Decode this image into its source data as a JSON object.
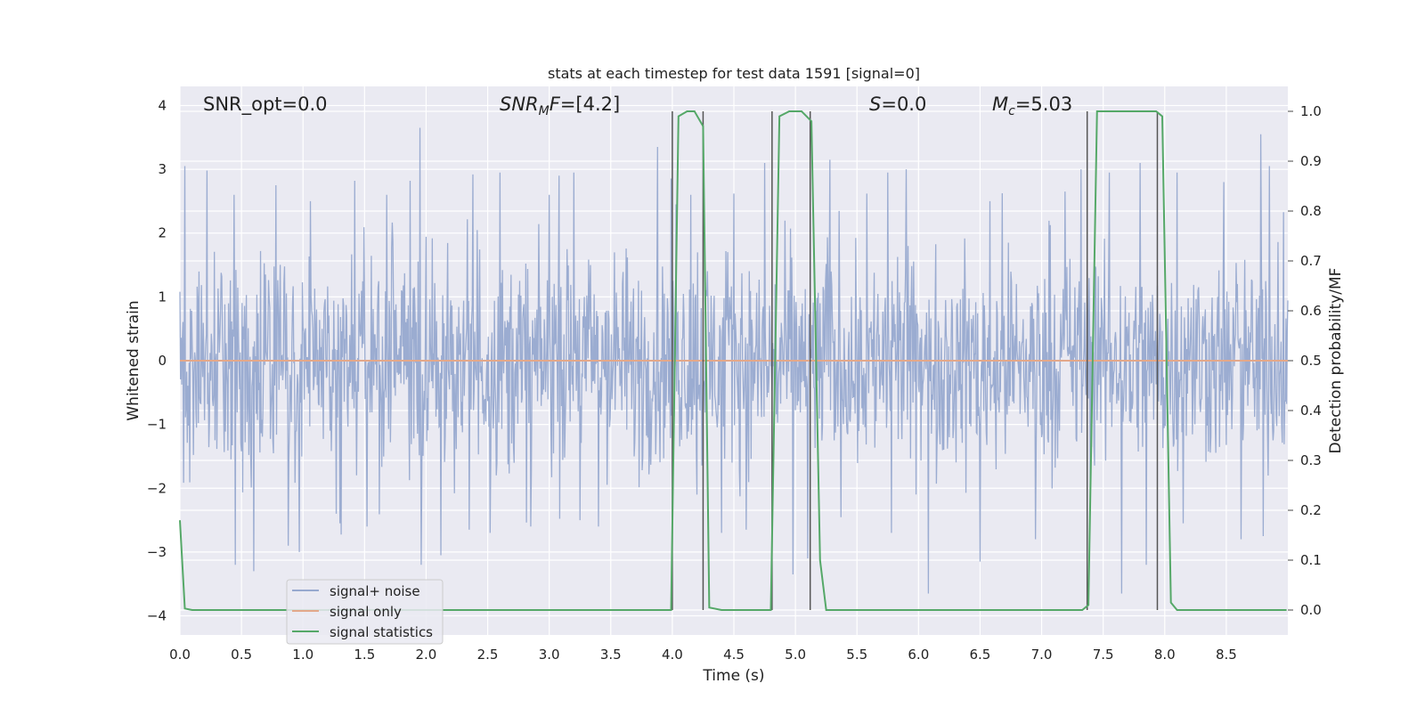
{
  "chart_data": {
    "type": "line",
    "title": "stats at each timestep for test data 1591 [signal=0]",
    "xlabel": "Time (s)",
    "ylabel_left": "Whitened strain",
    "ylabel_right": "Detection probability/MF",
    "xlim": [
      0.0,
      9.0
    ],
    "ylim_left": [
      -4.3,
      4.3
    ],
    "ylim_right": [
      -0.05,
      1.05
    ],
    "x_ticks": [
      "0.0",
      "0.5",
      "1.0",
      "1.5",
      "2.0",
      "2.5",
      "3.0",
      "3.5",
      "4.0",
      "4.5",
      "5.0",
      "5.5",
      "6.0",
      "6.5",
      "7.0",
      "7.5",
      "8.0",
      "8.5"
    ],
    "y_ticks_left": [
      "4",
      "3",
      "2",
      "1",
      "0",
      "−1",
      "−2",
      "−3",
      "−4"
    ],
    "y_ticks_right": [
      "1.0",
      "0.9",
      "0.8",
      "0.7",
      "0.6",
      "0.5",
      "0.4",
      "0.3",
      "0.2",
      "0.1",
      "0.0"
    ],
    "annotations": [
      {
        "name": "snr-opt",
        "text": "SNR_opt=0.0"
      },
      {
        "name": "snr-mf",
        "text_main": "SNR",
        "text_sub": "M",
        "text_tail": "F=[4.2]"
      },
      {
        "name": "s-value",
        "text_main": "S",
        "text_tail": "=0.0"
      },
      {
        "name": "mc-value",
        "text_main": "M",
        "text_sub": "c",
        "text_tail": "=5.03"
      }
    ],
    "legend": {
      "placement": "lower-left",
      "entries": [
        {
          "label": "signal+ noise",
          "color": "#97a9cf"
        },
        {
          "label": "signal only",
          "color": "#e3a88a"
        },
        {
          "label": "signal statistics",
          "color": "#55a868"
        }
      ]
    },
    "series": [
      {
        "name": "signal+ noise",
        "note_type": "noise",
        "color": "#97a9cf",
        "sample_rate_hz": 200,
        "spikes_up": [
          [
            0.04,
            3.05
          ],
          [
            0.22,
            2.98
          ],
          [
            0.44,
            2.6
          ],
          [
            0.78,
            2.75
          ],
          [
            1.06,
            2.5
          ],
          [
            1.42,
            2.82
          ],
          [
            1.68,
            2.6
          ],
          [
            1.87,
            2.82
          ],
          [
            1.95,
            3.65
          ],
          [
            2.38,
            2.92
          ],
          [
            2.6,
            2.95
          ],
          [
            3.0,
            2.6
          ],
          [
            3.08,
            2.9
          ],
          [
            3.2,
            2.95
          ],
          [
            3.88,
            3.35
          ],
          [
            4.03,
            2.45
          ],
          [
            4.15,
            2.6
          ],
          [
            4.5,
            2.62
          ],
          [
            4.75,
            3.1
          ],
          [
            5.28,
            3.15
          ],
          [
            5.58,
            2.62
          ],
          [
            5.75,
            2.95
          ],
          [
            5.9,
            3.0
          ],
          [
            6.08,
            2.92
          ],
          [
            6.58,
            2.5
          ],
          [
            6.95,
            2.85
          ],
          [
            7.19,
            2.65
          ],
          [
            7.32,
            3.0
          ],
          [
            7.55,
            2.95
          ],
          [
            7.65,
            2.8
          ],
          [
            7.8,
            3.1
          ],
          [
            8.1,
            2.95
          ],
          [
            8.48,
            2.8
          ],
          [
            8.78,
            3.55
          ],
          [
            8.85,
            3.05
          ]
        ],
        "spikes_down": [
          [
            0.45,
            -3.2
          ],
          [
            0.6,
            -3.3
          ],
          [
            0.88,
            -2.9
          ],
          [
            0.97,
            -3.0
          ],
          [
            1.3,
            -2.55
          ],
          [
            1.52,
            -2.6
          ],
          [
            1.96,
            -3.2
          ],
          [
            2.12,
            -3.05
          ],
          [
            2.35,
            -2.65
          ],
          [
            2.52,
            -2.7
          ],
          [
            2.85,
            -2.6
          ],
          [
            3.25,
            -2.5
          ],
          [
            3.4,
            -2.6
          ],
          [
            4.2,
            -2.1
          ],
          [
            4.4,
            -2.7
          ],
          [
            4.6,
            -2.65
          ],
          [
            4.98,
            -3.35
          ],
          [
            5.1,
            -3.1
          ],
          [
            5.78,
            -2.7
          ],
          [
            6.08,
            -3.65
          ],
          [
            6.5,
            -3.15
          ],
          [
            6.95,
            -2.8
          ],
          [
            7.65,
            -3.65
          ],
          [
            7.85,
            -3.2
          ],
          [
            8.15,
            -2.55
          ],
          [
            8.62,
            -2.8
          ],
          [
            8.8,
            -2.75
          ]
        ]
      },
      {
        "name": "signal only",
        "color": "#e3a88a",
        "x": [
          0.0,
          9.0
        ],
        "y": [
          0.0,
          0.0
        ]
      },
      {
        "name": "signal statistics",
        "color": "#55a868",
        "axis": "right",
        "x": [
          0.0,
          0.04,
          0.1,
          3.99,
          4.05,
          4.12,
          4.18,
          4.25,
          4.3,
          4.4,
          4.8,
          4.87,
          4.95,
          5.05,
          5.13,
          5.2,
          5.25,
          7.33,
          7.38,
          7.45,
          7.93,
          7.98,
          8.05,
          8.1,
          8.99
        ],
        "y": [
          0.18,
          0.003,
          0.0,
          0.0,
          0.99,
          1.0,
          1.0,
          0.97,
          0.005,
          0.0,
          0.0,
          0.99,
          1.0,
          1.0,
          0.98,
          0.1,
          0.0,
          0.0,
          0.01,
          1.0,
          1.0,
          0.99,
          0.015,
          0.0,
          0.0
        ]
      }
    ],
    "vertical_markers": [
      4.0,
      4.25,
      4.81,
      5.12,
      7.37,
      7.94
    ]
  }
}
